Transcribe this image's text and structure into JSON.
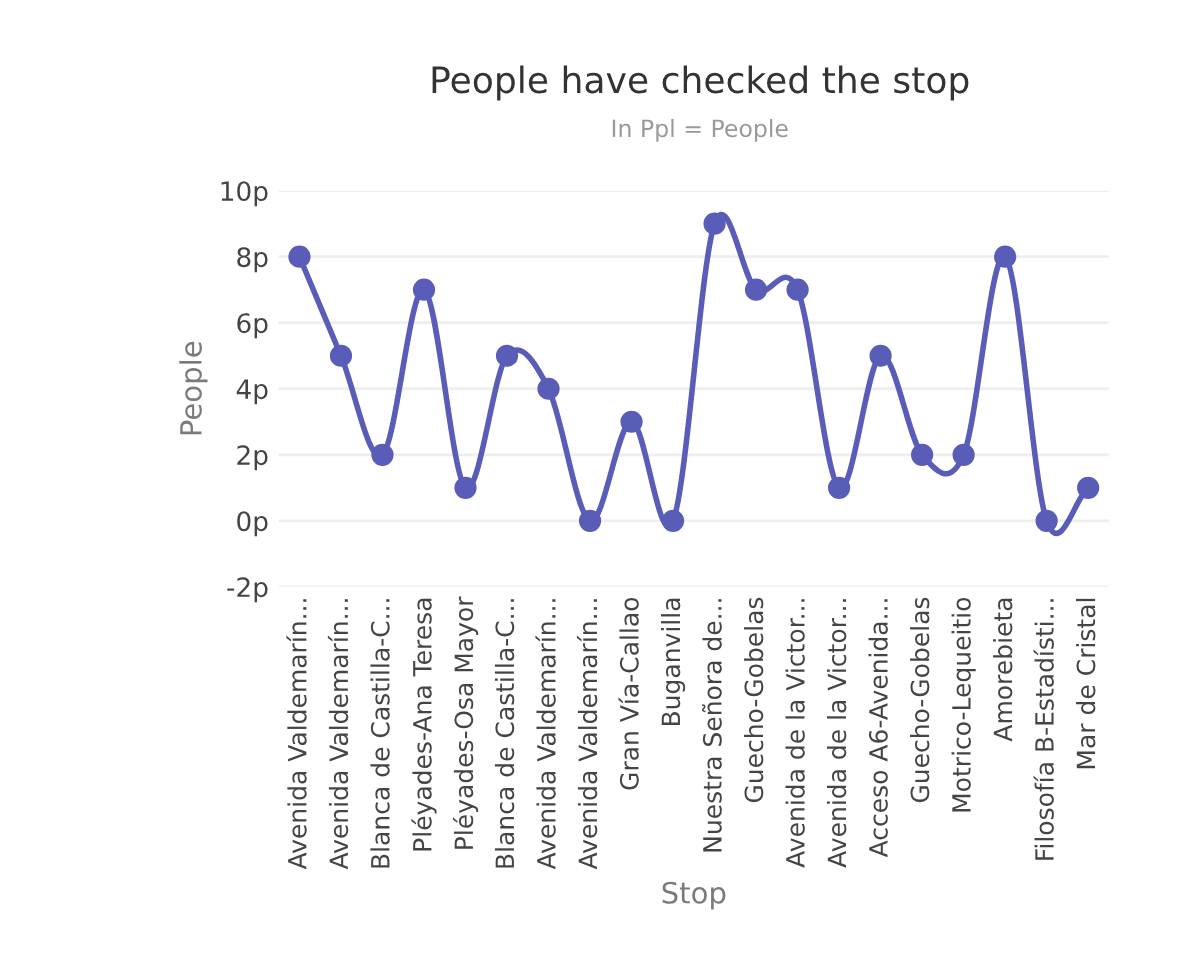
{
  "chart_data": {
    "type": "line",
    "title": "People have checked the stop",
    "subtitle": "In Ppl = People",
    "xlabel": "Stop",
    "ylabel": "People",
    "categories": [
      "Avenida Valdemarín...",
      "Avenida Valdemarín...",
      "Blanca de Castilla-C...",
      "Pléyades-Ana Teresa",
      "Pléyades-Osa Mayor",
      "Blanca de Castilla-C...",
      "Avenida Valdemarín...",
      "Avenida Valdemarín...",
      "Gran Vía-Callao",
      "Buganvilla",
      "Nuestra Señora de...",
      "Guecho-Gobelas",
      "Avenida de la Victor...",
      "Avenida de la Victor...",
      "Acceso A6-Avenida...",
      "Guecho-Gobelas",
      "Motrico-Lequeitio",
      "Amorebieta",
      "Filosofía B-Estadísti...",
      "Mar de Cristal"
    ],
    "series": [
      {
        "color": "#5a5db8",
        "values": [
          8,
          5,
          2,
          7,
          1,
          5,
          4,
          0,
          3,
          0,
          9,
          7,
          7,
          1,
          5,
          2,
          2,
          8,
          0,
          1
        ]
      }
    ],
    "ylim": [
      -2,
      10
    ],
    "yticks": [
      {
        "value": -2,
        "label": "-2p"
      },
      {
        "value": 0,
        "label": "0p"
      },
      {
        "value": 2,
        "label": "2p"
      },
      {
        "value": 4,
        "label": "4p"
      },
      {
        "value": 6,
        "label": "6p"
      },
      {
        "value": 8,
        "label": "8p"
      },
      {
        "value": 10,
        "label": "10p"
      }
    ],
    "grid": "y",
    "marker": "circle",
    "line_style": "solid",
    "legend": false
  }
}
